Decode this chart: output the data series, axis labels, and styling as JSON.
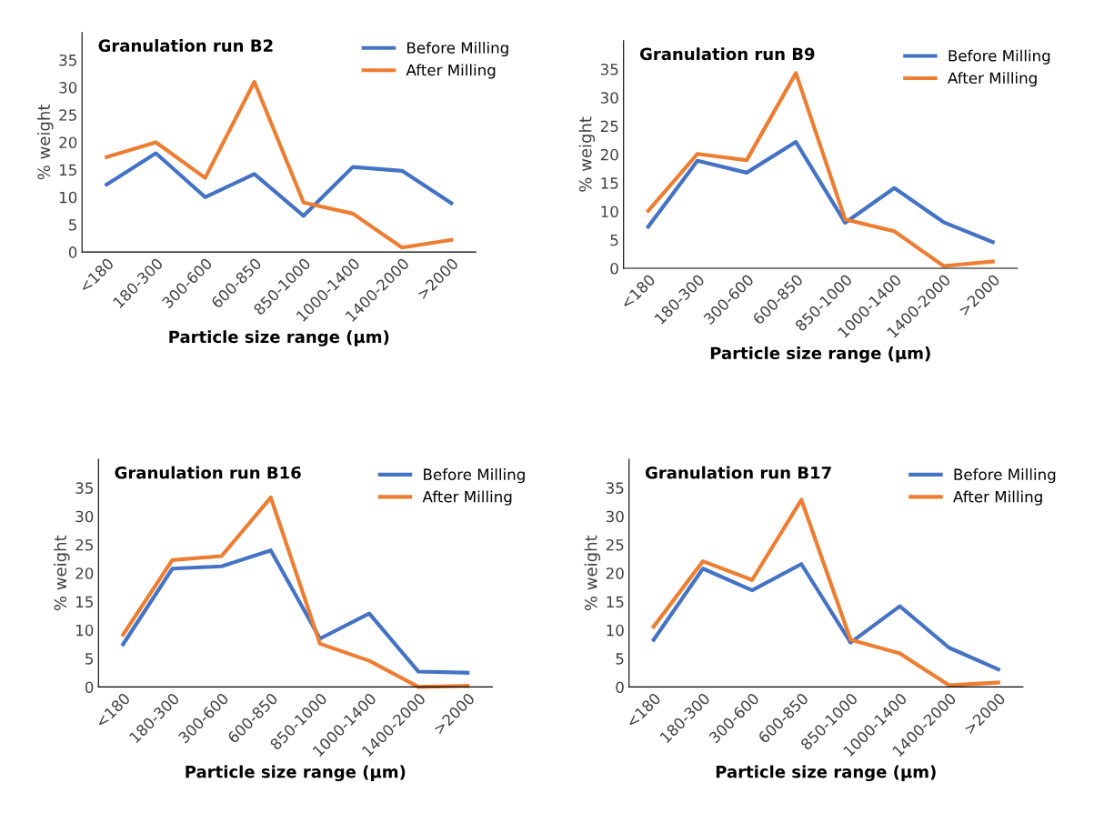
{
  "chart_data": [
    {
      "type": "line",
      "title": "Granulation run B2",
      "xlabel": "Particle size range (µm)",
      "ylabel": "% weight",
      "categories": [
        "<180",
        "180-300",
        "300-600",
        "600-850",
        "850-1000",
        "1000-1400",
        "1400-2000",
        ">2000"
      ],
      "ylim": [
        0,
        40
      ],
      "yticks": [
        0,
        5,
        10,
        15,
        20,
        25,
        30,
        35
      ],
      "grid": false,
      "legend": "top right",
      "marker": "none",
      "line_style": "solid",
      "series": [
        {
          "name": "Before Milling",
          "color": "#4472c4",
          "values": [
            12.3,
            18,
            10,
            14.2,
            6.6,
            15.5,
            14.8,
            8.9
          ]
        },
        {
          "name": "After Milling",
          "color": "#ed7d31",
          "values": [
            17.3,
            20,
            13.5,
            31,
            9,
            7,
            0.8,
            2.2
          ]
        }
      ]
    },
    {
      "type": "line",
      "title": "Granulation run B9",
      "xlabel": "Particle size range (µm)",
      "ylabel": "% weight",
      "categories": [
        "<180",
        "180-300",
        "300-600",
        "600-850",
        "850-1000",
        "1000-1400",
        "1400-2000",
        ">2000"
      ],
      "ylim": [
        0,
        40
      ],
      "yticks": [
        0,
        5,
        10,
        15,
        20,
        25,
        30,
        35
      ],
      "grid": false,
      "legend": "top right",
      "marker": "none",
      "line_style": "solid",
      "series": [
        {
          "name": "Before Milling",
          "color": "#4472c4",
          "values": [
            7.3,
            18.9,
            16.8,
            22.2,
            8,
            14.1,
            8.1,
            4.6
          ]
        },
        {
          "name": "After Milling",
          "color": "#ed7d31",
          "values": [
            10.1,
            20.1,
            19,
            34.3,
            8.6,
            6.5,
            0.4,
            1.2
          ]
        }
      ]
    },
    {
      "type": "line",
      "title": "Granulation run B16",
      "xlabel": "Particle size range (µm)",
      "ylabel": "% weight",
      "categories": [
        "<180",
        "180-300",
        "300-600",
        "600-850",
        "850-1000",
        "1000-1400",
        "1400-2000",
        ">2000"
      ],
      "ylim": [
        0,
        40
      ],
      "yticks": [
        0,
        5,
        10,
        15,
        20,
        25,
        30,
        35
      ],
      "grid": false,
      "legend": "top right",
      "marker": "none",
      "line_style": "solid",
      "series": [
        {
          "name": "Before Milling",
          "color": "#4472c4",
          "values": [
            7.5,
            20.8,
            21.2,
            24,
            8.5,
            12.9,
            2.7,
            2.5
          ]
        },
        {
          "name": "After Milling",
          "color": "#ed7d31",
          "values": [
            9.2,
            22.3,
            23,
            33.3,
            7.6,
            4.6,
            0,
            0.2
          ]
        }
      ]
    },
    {
      "type": "line",
      "title": "Granulation run B17",
      "xlabel": "Particle size range (µm)",
      "ylabel": "% weight",
      "categories": [
        "<180",
        "180-300",
        "300-600",
        "600-850",
        "850-1000",
        "1000-1400",
        "1400-2000",
        ">2000"
      ],
      "ylim": [
        0,
        40
      ],
      "yticks": [
        0,
        5,
        10,
        15,
        20,
        25,
        30,
        35
      ],
      "grid": false,
      "legend": "top right",
      "marker": "none",
      "line_style": "solid",
      "series": [
        {
          "name": "Before Milling",
          "color": "#4472c4",
          "values": [
            8.3,
            20.8,
            17,
            21.6,
            7.8,
            14.2,
            6.9,
            3.1
          ]
        },
        {
          "name": "After Milling",
          "color": "#ed7d31",
          "values": [
            10.6,
            22.1,
            18.8,
            32.9,
            8.3,
            5.9,
            0.3,
            0.8
          ]
        }
      ]
    }
  ]
}
